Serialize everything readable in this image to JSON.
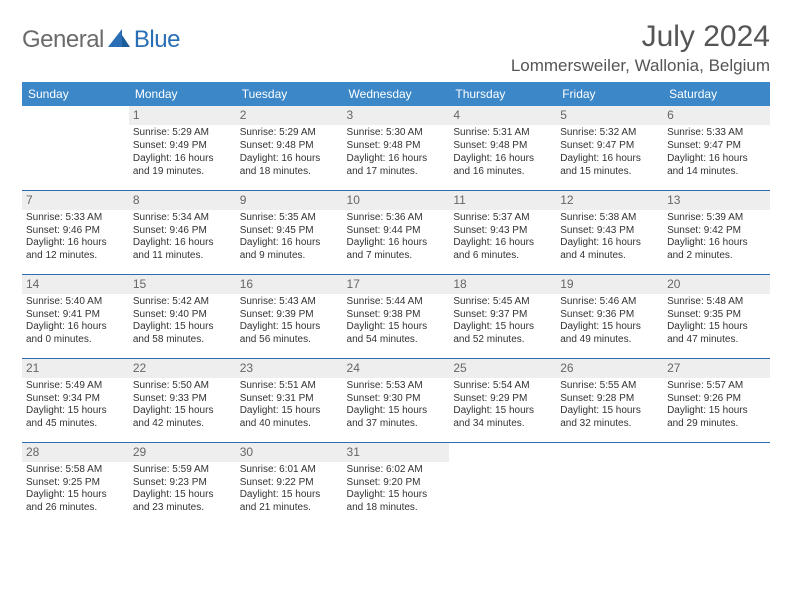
{
  "brand": {
    "part1": "General",
    "part2": "Blue",
    "icon_color": "#2a6fb5"
  },
  "title": "July 2024",
  "location": "Lommersweiler, Wallonia, Belgium",
  "header_bg": "#3b87c8",
  "header_fg": "#ffffff",
  "rule_color": "#2a6fb5",
  "daynum_bg": "#eeeeee",
  "day_headers": [
    "Sunday",
    "Monday",
    "Tuesday",
    "Wednesday",
    "Thursday",
    "Friday",
    "Saturday"
  ],
  "weeks": [
    [
      null,
      {
        "n": "1",
        "sr": "5:29 AM",
        "ss": "9:49 PM",
        "dl": "16 hours and 19 minutes."
      },
      {
        "n": "2",
        "sr": "5:29 AM",
        "ss": "9:48 PM",
        "dl": "16 hours and 18 minutes."
      },
      {
        "n": "3",
        "sr": "5:30 AM",
        "ss": "9:48 PM",
        "dl": "16 hours and 17 minutes."
      },
      {
        "n": "4",
        "sr": "5:31 AM",
        "ss": "9:48 PM",
        "dl": "16 hours and 16 minutes."
      },
      {
        "n": "5",
        "sr": "5:32 AM",
        "ss": "9:47 PM",
        "dl": "16 hours and 15 minutes."
      },
      {
        "n": "6",
        "sr": "5:33 AM",
        "ss": "9:47 PM",
        "dl": "16 hours and 14 minutes."
      }
    ],
    [
      {
        "n": "7",
        "sr": "5:33 AM",
        "ss": "9:46 PM",
        "dl": "16 hours and 12 minutes."
      },
      {
        "n": "8",
        "sr": "5:34 AM",
        "ss": "9:46 PM",
        "dl": "16 hours and 11 minutes."
      },
      {
        "n": "9",
        "sr": "5:35 AM",
        "ss": "9:45 PM",
        "dl": "16 hours and 9 minutes."
      },
      {
        "n": "10",
        "sr": "5:36 AM",
        "ss": "9:44 PM",
        "dl": "16 hours and 7 minutes."
      },
      {
        "n": "11",
        "sr": "5:37 AM",
        "ss": "9:43 PM",
        "dl": "16 hours and 6 minutes."
      },
      {
        "n": "12",
        "sr": "5:38 AM",
        "ss": "9:43 PM",
        "dl": "16 hours and 4 minutes."
      },
      {
        "n": "13",
        "sr": "5:39 AM",
        "ss": "9:42 PM",
        "dl": "16 hours and 2 minutes."
      }
    ],
    [
      {
        "n": "14",
        "sr": "5:40 AM",
        "ss": "9:41 PM",
        "dl": "16 hours and 0 minutes."
      },
      {
        "n": "15",
        "sr": "5:42 AM",
        "ss": "9:40 PM",
        "dl": "15 hours and 58 minutes."
      },
      {
        "n": "16",
        "sr": "5:43 AM",
        "ss": "9:39 PM",
        "dl": "15 hours and 56 minutes."
      },
      {
        "n": "17",
        "sr": "5:44 AM",
        "ss": "9:38 PM",
        "dl": "15 hours and 54 minutes."
      },
      {
        "n": "18",
        "sr": "5:45 AM",
        "ss": "9:37 PM",
        "dl": "15 hours and 52 minutes."
      },
      {
        "n": "19",
        "sr": "5:46 AM",
        "ss": "9:36 PM",
        "dl": "15 hours and 49 minutes."
      },
      {
        "n": "20",
        "sr": "5:48 AM",
        "ss": "9:35 PM",
        "dl": "15 hours and 47 minutes."
      }
    ],
    [
      {
        "n": "21",
        "sr": "5:49 AM",
        "ss": "9:34 PM",
        "dl": "15 hours and 45 minutes."
      },
      {
        "n": "22",
        "sr": "5:50 AM",
        "ss": "9:33 PM",
        "dl": "15 hours and 42 minutes."
      },
      {
        "n": "23",
        "sr": "5:51 AM",
        "ss": "9:31 PM",
        "dl": "15 hours and 40 minutes."
      },
      {
        "n": "24",
        "sr": "5:53 AM",
        "ss": "9:30 PM",
        "dl": "15 hours and 37 minutes."
      },
      {
        "n": "25",
        "sr": "5:54 AM",
        "ss": "9:29 PM",
        "dl": "15 hours and 34 minutes."
      },
      {
        "n": "26",
        "sr": "5:55 AM",
        "ss": "9:28 PM",
        "dl": "15 hours and 32 minutes."
      },
      {
        "n": "27",
        "sr": "5:57 AM",
        "ss": "9:26 PM",
        "dl": "15 hours and 29 minutes."
      }
    ],
    [
      {
        "n": "28",
        "sr": "5:58 AM",
        "ss": "9:25 PM",
        "dl": "15 hours and 26 minutes."
      },
      {
        "n": "29",
        "sr": "5:59 AM",
        "ss": "9:23 PM",
        "dl": "15 hours and 23 minutes."
      },
      {
        "n": "30",
        "sr": "6:01 AM",
        "ss": "9:22 PM",
        "dl": "15 hours and 21 minutes."
      },
      {
        "n": "31",
        "sr": "6:02 AM",
        "ss": "9:20 PM",
        "dl": "15 hours and 18 minutes."
      },
      null,
      null,
      null
    ]
  ],
  "labels": {
    "sunrise": "Sunrise:",
    "sunset": "Sunset:",
    "daylight": "Daylight:"
  }
}
